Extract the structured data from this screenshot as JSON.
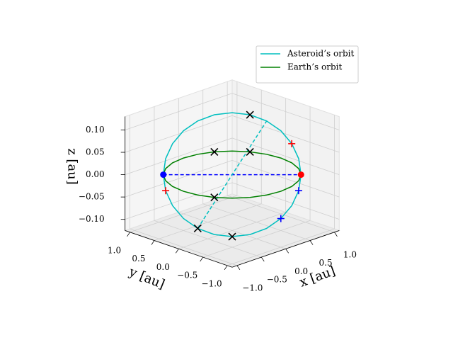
{
  "chart_data": {
    "type": "line3d",
    "xlabel": "x [au]",
    "ylabel": "y [au]",
    "zlabel": "z [au]",
    "xlim": [
      -1.1,
      1.1
    ],
    "ylim": [
      -1.1,
      1.1
    ],
    "zlim": [
      -0.125,
      0.13
    ],
    "xticks": [
      {
        "value": -1.0,
        "label": "−1.0"
      },
      {
        "value": -0.5,
        "label": "−0.5"
      },
      {
        "value": 0.0,
        "label": "0.0"
      },
      0.5,
      {
        "value": 1.0,
        "label": "1.0"
      }
    ],
    "yticks": [
      {
        "value": -1.0,
        "label": "−1.0"
      },
      {
        "value": -0.5,
        "label": "−0.5"
      },
      {
        "value": 0.0,
        "label": "0.0"
      },
      0.5,
      {
        "value": 1.0,
        "label": "1.0"
      }
    ],
    "zticks": [
      {
        "value": -0.1,
        "label": "−0.10"
      },
      {
        "value": -0.05,
        "label": "−0.05"
      },
      {
        "value": 0.0,
        "label": "0.00"
      },
      {
        "value": 0.05,
        "label": "0.05"
      },
      {
        "value": 0.1,
        "label": "0.10"
      }
    ],
    "grid": true,
    "legend": "upper right",
    "series": [
      {
        "name": "Asteroid’s orbit",
        "color": "#00bfbf",
        "x": [
          -0.707,
          -0.618,
          -0.487,
          -0.323,
          -0.137,
          0.059,
          0.25,
          0.425,
          0.571,
          0.677,
          0.737,
          0.748,
          0.707,
          0.618,
          0.487,
          0.323,
          0.137,
          -0.059,
          -0.25,
          -0.425,
          -0.571,
          -0.677,
          -0.737,
          -0.748,
          -0.707
        ],
        "y": [
          0.707,
          0.748,
          0.737,
          0.677,
          0.571,
          0.425,
          0.25,
          0.059,
          -0.137,
          -0.323,
          -0.487,
          -0.618,
          -0.707,
          -0.748,
          -0.737,
          -0.677,
          -0.571,
          -0.425,
          -0.25,
          -0.059,
          0.137,
          0.323,
          0.487,
          0.618,
          0.707
        ],
        "z": [
          0,
          0.031,
          0.06,
          0.085,
          0.104,
          0.116,
          0.12,
          0.116,
          0.104,
          0.085,
          0.06,
          0.031,
          0,
          -0.031,
          -0.06,
          -0.085,
          -0.104,
          -0.116,
          -0.12,
          -0.116,
          -0.104,
          -0.085,
          -0.06,
          -0.031,
          0
        ]
      },
      {
        "name": "Earth’s orbit",
        "color": "#008000",
        "x": [
          1,
          0.966,
          0.866,
          0.707,
          0.5,
          0.259,
          0,
          -0.259,
          -0.5,
          -0.707,
          -0.866,
          -0.966,
          -1,
          -0.966,
          -0.866,
          -0.707,
          -0.5,
          -0.259,
          0,
          0.259,
          0.5,
          0.707,
          0.866,
          0.966,
          1
        ],
        "y": [
          0,
          0.259,
          0.5,
          0.707,
          0.866,
          0.966,
          1,
          0.966,
          0.866,
          0.707,
          0.5,
          0.259,
          0,
          -0.259,
          -0.5,
          -0.707,
          -0.866,
          -0.966,
          -1,
          -0.966,
          -0.866,
          -0.707,
          -0.5,
          -0.259,
          0
        ],
        "z": [
          0,
          0,
          0,
          0,
          0,
          0,
          0,
          0,
          0,
          0,
          0,
          0,
          0,
          0,
          0,
          0,
          0,
          0,
          0,
          0,
          0,
          0,
          0,
          0,
          0
        ]
      }
    ],
    "dashed_lines": [
      {
        "color": "#0000ff",
        "x": [
          -0.707,
          0.707
        ],
        "y": [
          0.707,
          -0.707
        ],
        "z": [
          0,
          0
        ]
      },
      {
        "color": "#00bfbf",
        "x": [
          -0.571,
          0.571
        ],
        "y": [
          0.137,
          -0.137
        ],
        "z": [
          -0.104,
          0.104
        ]
      }
    ],
    "points": [
      {
        "x": -0.707,
        "y": 0.707,
        "z": 0,
        "marker": "o",
        "color": "#0000ff"
      },
      {
        "x": 0.707,
        "y": -0.707,
        "z": 0,
        "marker": "o",
        "color": "#ff0000"
      },
      {
        "x": 0.737,
        "y": -0.487,
        "z": 0.06,
        "marker": "+",
        "color": "#ff0000"
      },
      {
        "x": -0.748,
        "y": 0.618,
        "z": -0.031,
        "marker": "+",
        "color": "#ff0000"
      },
      {
        "x": 0.618,
        "y": -0.748,
        "z": -0.031,
        "marker": "+",
        "color": "#0000ff"
      },
      {
        "x": 0.323,
        "y": -0.677,
        "z": -0.085,
        "marker": "+",
        "color": "#0000ff"
      },
      {
        "x": 0.425,
        "y": 0.059,
        "z": 0.116,
        "marker": "x",
        "color": "#000000"
      },
      {
        "x": -0.25,
        "y": -0.25,
        "z": -0.12,
        "marker": "x",
        "color": "#000000"
      },
      {
        "x": -0.571,
        "y": 0.137,
        "z": -0.104,
        "marker": "x",
        "color": "#000000"
      },
      {
        "x": 0.5,
        "y": 0.866,
        "z": 0,
        "marker": "x",
        "color": "#000000"
      },
      {
        "x": 0.866,
        "y": 0.5,
        "z": 0,
        "marker": "x",
        "color": "#000000"
      },
      {
        "x": -0.866,
        "y": -0.5,
        "z": 0,
        "marker": "x",
        "color": "#000000"
      }
    ]
  }
}
